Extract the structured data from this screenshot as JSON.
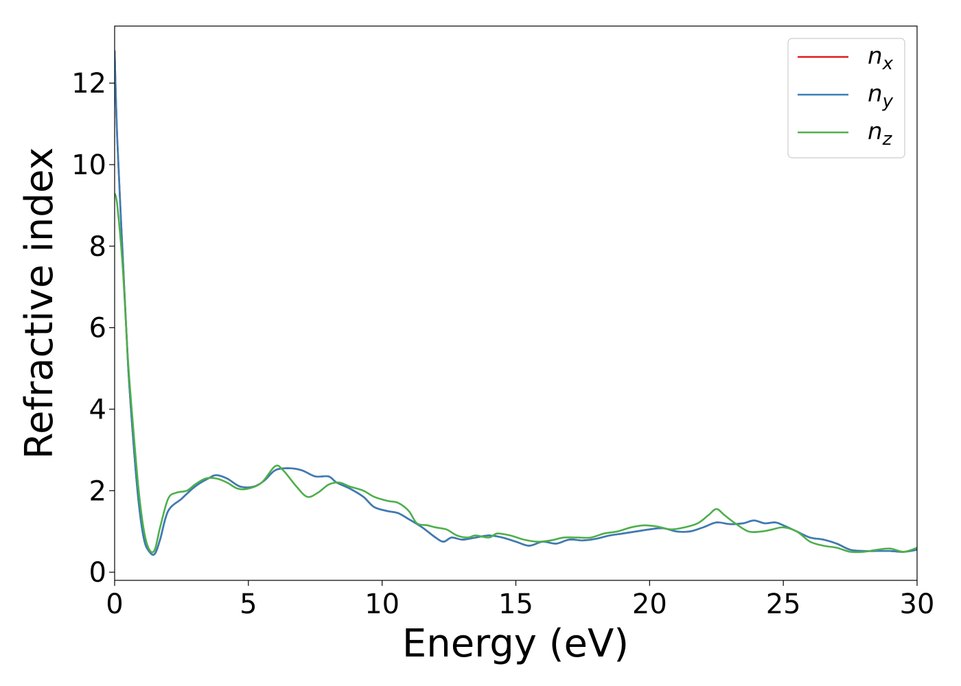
{
  "chart_data": {
    "type": "line",
    "title": "",
    "xlabel": "Energy (eV)",
    "ylabel": "Refractive index",
    "xlim": [
      0,
      30
    ],
    "ylim": [
      -0.2,
      13.4
    ],
    "xticks": [
      0,
      5,
      10,
      15,
      20,
      25,
      30
    ],
    "yticks": [
      0,
      2,
      4,
      6,
      8,
      10,
      12
    ],
    "xtick_labels": [
      "0",
      "5",
      "10",
      "15",
      "20",
      "25",
      "30"
    ],
    "ytick_labels": [
      "0",
      "2",
      "4",
      "6",
      "8",
      "10",
      "12"
    ],
    "grid": false,
    "legend_position": "top-right",
    "series": [
      {
        "name": "n",
        "subscript": "x",
        "color": "#e41a1c",
        "x": [
          0,
          0.1,
          0.3,
          0.5,
          0.7,
          0.9,
          1.1,
          1.3,
          1.5,
          1.7,
          2.0,
          2.5,
          3.0,
          3.5,
          3.8,
          4.2,
          4.7,
          5.2,
          5.6,
          6.0,
          6.5,
          7.0,
          7.5,
          8.0,
          8.3,
          8.8,
          9.3,
          9.7,
          10.2,
          10.6,
          11.0,
          11.5,
          12.0,
          12.3,
          12.6,
          13.0,
          13.5,
          14.0,
          14.5,
          15.0,
          15.5,
          16.0,
          16.5,
          17.0,
          17.5,
          18.0,
          18.5,
          19.0,
          19.5,
          20.0,
          20.5,
          21.0,
          21.5,
          22.0,
          22.5,
          23.0,
          23.5,
          23.9,
          24.3,
          24.7,
          25.0,
          25.5,
          26.0,
          26.5,
          27.0,
          27.5,
          28.0,
          28.5,
          29.0,
          29.5,
          30.0
        ],
        "y": [
          12.8,
          10.6,
          7.8,
          5.1,
          3.2,
          1.7,
          0.8,
          0.5,
          0.45,
          0.8,
          1.5,
          1.8,
          2.1,
          2.3,
          2.38,
          2.3,
          2.1,
          2.1,
          2.25,
          2.5,
          2.55,
          2.5,
          2.35,
          2.35,
          2.2,
          2.05,
          1.85,
          1.6,
          1.5,
          1.45,
          1.3,
          1.1,
          0.85,
          0.75,
          0.85,
          0.8,
          0.85,
          0.9,
          0.85,
          0.75,
          0.65,
          0.75,
          0.7,
          0.8,
          0.78,
          0.82,
          0.9,
          0.95,
          1.0,
          1.05,
          1.08,
          1.0,
          1.0,
          1.1,
          1.22,
          1.18,
          1.2,
          1.27,
          1.2,
          1.22,
          1.15,
          1.0,
          0.85,
          0.8,
          0.7,
          0.55,
          0.52,
          0.52,
          0.52,
          0.5,
          0.55
        ]
      },
      {
        "name": "n",
        "subscript": "y",
        "color": "#377eb8",
        "x": [
          0,
          0.1,
          0.3,
          0.5,
          0.7,
          0.9,
          1.1,
          1.3,
          1.5,
          1.7,
          2.0,
          2.5,
          3.0,
          3.5,
          3.8,
          4.2,
          4.7,
          5.2,
          5.6,
          6.0,
          6.5,
          7.0,
          7.5,
          8.0,
          8.3,
          8.8,
          9.3,
          9.7,
          10.2,
          10.6,
          11.0,
          11.5,
          12.0,
          12.3,
          12.6,
          13.0,
          13.5,
          14.0,
          14.5,
          15.0,
          15.5,
          16.0,
          16.5,
          17.0,
          17.5,
          18.0,
          18.5,
          19.0,
          19.5,
          20.0,
          20.5,
          21.0,
          21.5,
          22.0,
          22.5,
          23.0,
          23.5,
          23.9,
          24.3,
          24.7,
          25.0,
          25.5,
          26.0,
          26.5,
          27.0,
          27.5,
          28.0,
          28.5,
          29.0,
          29.5,
          30.0
        ],
        "y": [
          12.8,
          10.6,
          7.8,
          5.1,
          3.2,
          1.7,
          0.8,
          0.5,
          0.45,
          0.8,
          1.5,
          1.8,
          2.1,
          2.3,
          2.38,
          2.3,
          2.1,
          2.1,
          2.25,
          2.5,
          2.55,
          2.5,
          2.35,
          2.35,
          2.2,
          2.05,
          1.85,
          1.6,
          1.5,
          1.45,
          1.3,
          1.1,
          0.85,
          0.75,
          0.85,
          0.8,
          0.85,
          0.9,
          0.85,
          0.75,
          0.65,
          0.75,
          0.7,
          0.8,
          0.78,
          0.82,
          0.9,
          0.95,
          1.0,
          1.05,
          1.08,
          1.0,
          1.0,
          1.1,
          1.22,
          1.18,
          1.2,
          1.27,
          1.2,
          1.22,
          1.15,
          1.0,
          0.85,
          0.8,
          0.7,
          0.55,
          0.52,
          0.52,
          0.52,
          0.5,
          0.55
        ]
      },
      {
        "name": "n",
        "subscript": "z",
        "color": "#4daf4a",
        "x": [
          0,
          0.1,
          0.3,
          0.5,
          0.7,
          0.9,
          1.1,
          1.3,
          1.5,
          1.7,
          2.0,
          2.3,
          2.7,
          3.0,
          3.4,
          3.8,
          4.2,
          4.6,
          5.0,
          5.5,
          6.0,
          6.3,
          6.8,
          7.2,
          7.6,
          8.0,
          8.4,
          8.8,
          9.3,
          9.7,
          10.2,
          10.6,
          11.0,
          11.3,
          11.7,
          12.0,
          12.4,
          12.8,
          13.2,
          13.5,
          14.0,
          14.3,
          14.8,
          15.3,
          15.8,
          16.3,
          16.8,
          17.3,
          17.8,
          18.3,
          18.8,
          19.3,
          19.8,
          20.3,
          20.8,
          21.3,
          21.8,
          22.2,
          22.5,
          22.8,
          23.2,
          23.7,
          24.2,
          24.6,
          25.0,
          25.5,
          26.0,
          26.5,
          27.0,
          27.5,
          28.0,
          28.5,
          29.0,
          29.5,
          30.0
        ],
        "y": [
          9.3,
          9.0,
          7.5,
          5.2,
          3.5,
          2.0,
          1.0,
          0.55,
          0.55,
          1.1,
          1.8,
          1.95,
          2.0,
          2.15,
          2.3,
          2.3,
          2.2,
          2.05,
          2.05,
          2.2,
          2.6,
          2.5,
          2.1,
          1.85,
          1.95,
          2.15,
          2.2,
          2.1,
          2.0,
          1.85,
          1.75,
          1.7,
          1.5,
          1.2,
          1.15,
          1.1,
          1.05,
          0.9,
          0.85,
          0.9,
          0.85,
          0.95,
          0.9,
          0.8,
          0.75,
          0.78,
          0.85,
          0.85,
          0.85,
          0.95,
          1.0,
          1.1,
          1.15,
          1.12,
          1.05,
          1.1,
          1.2,
          1.4,
          1.55,
          1.4,
          1.2,
          1.0,
          1.0,
          1.05,
          1.1,
          1.0,
          0.75,
          0.65,
          0.6,
          0.5,
          0.5,
          0.55,
          0.58,
          0.5,
          0.6
        ]
      }
    ]
  }
}
